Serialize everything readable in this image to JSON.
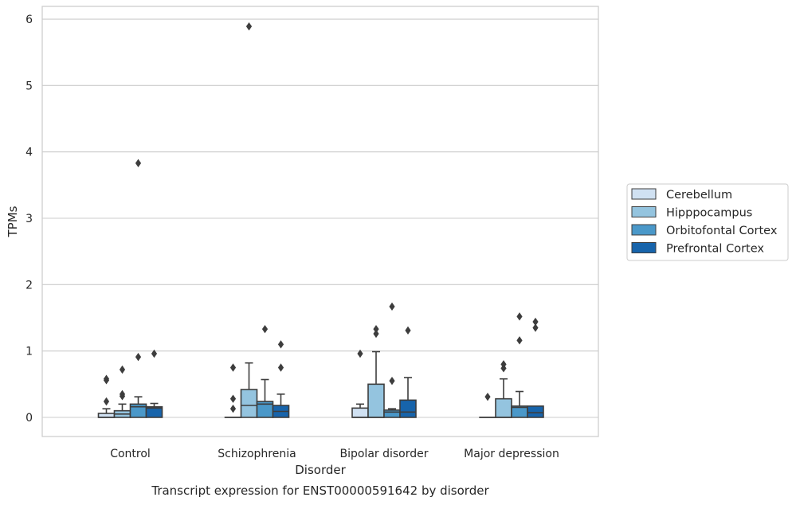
{
  "chart_data": {
    "type": "box",
    "title": "Transcript expression for ENST00000591642 by disorder",
    "xlabel": "Disorder",
    "ylabel": "TPMs",
    "ylim": [
      -0.28,
      6.18
    ],
    "yticks": [
      0,
      1,
      2,
      3,
      4,
      5,
      6
    ],
    "categories": [
      "Control",
      "Schizophrenia",
      "Bipolar disorder",
      "Major depression"
    ],
    "grid": "horizontal",
    "legend_position": "right",
    "series": [
      {
        "name": "Cerebellum",
        "color": "#d0e1f2",
        "boxes": [
          {
            "q1": 0.0,
            "median": 0.0,
            "q3": 0.06,
            "whisker_low": 0.0,
            "whisker_high": 0.13,
            "outliers": [
              0.24,
              0.56,
              0.58
            ]
          },
          {
            "q1": 0.0,
            "median": 0.0,
            "q3": 0.0,
            "whisker_low": 0.0,
            "whisker_high": 0.0,
            "outliers": [
              0.13,
              0.28,
              0.75
            ]
          },
          {
            "q1": 0.0,
            "median": 0.0,
            "q3": 0.14,
            "whisker_low": 0.0,
            "whisker_high": 0.2,
            "outliers": [
              0.96
            ]
          },
          {
            "q1": 0.0,
            "median": 0.0,
            "q3": 0.0,
            "whisker_low": 0.0,
            "whisker_high": 0.0,
            "outliers": [
              0.31
            ]
          }
        ]
      },
      {
        "name": "Hipppocampus",
        "color": "#94c4df",
        "boxes": [
          {
            "q1": 0.0,
            "median": 0.05,
            "q3": 0.1,
            "whisker_low": 0.0,
            "whisker_high": 0.2,
            "outliers": [
              0.32,
              0.35,
              0.72
            ]
          },
          {
            "q1": 0.0,
            "median": 0.18,
            "q3": 0.42,
            "whisker_low": 0.0,
            "whisker_high": 0.82,
            "outliers": [
              5.89
            ]
          },
          {
            "q1": 0.0,
            "median": 0.0,
            "q3": 0.5,
            "whisker_low": 0.0,
            "whisker_high": 0.99,
            "outliers": [
              1.26,
              1.33
            ]
          },
          {
            "q1": 0.0,
            "median": 0.0,
            "q3": 0.28,
            "whisker_low": 0.0,
            "whisker_high": 0.58,
            "outliers": [
              0.74,
              0.8
            ]
          }
        ]
      },
      {
        "name": "Orbitofontal Cortex",
        "color": "#4a98c9",
        "boxes": [
          {
            "q1": 0.0,
            "median": 0.16,
            "q3": 0.2,
            "whisker_low": 0.0,
            "whisker_high": 0.31,
            "outliers": [
              0.91,
              3.83
            ]
          },
          {
            "q1": 0.0,
            "median": 0.2,
            "q3": 0.24,
            "whisker_low": 0.0,
            "whisker_high": 0.57,
            "outliers": [
              1.33
            ]
          },
          {
            "q1": 0.0,
            "median": 0.08,
            "q3": 0.11,
            "whisker_low": 0.0,
            "whisker_high": 0.13,
            "outliers": [
              0.55,
              1.67
            ]
          },
          {
            "q1": 0.0,
            "median": 0.15,
            "q3": 0.17,
            "whisker_low": 0.0,
            "whisker_high": 0.39,
            "outliers": [
              1.16,
              1.52
            ]
          }
        ]
      },
      {
        "name": "Prefrontal Cortex",
        "color": "#1764ab",
        "boxes": [
          {
            "q1": 0.0,
            "median": 0.14,
            "q3": 0.16,
            "whisker_low": 0.0,
            "whisker_high": 0.21,
            "outliers": [
              0.96
            ]
          },
          {
            "q1": 0.0,
            "median": 0.09,
            "q3": 0.18,
            "whisker_low": 0.0,
            "whisker_high": 0.35,
            "outliers": [
              0.75,
              1.1
            ]
          },
          {
            "q1": 0.0,
            "median": 0.08,
            "q3": 0.26,
            "whisker_low": 0.0,
            "whisker_high": 0.6,
            "outliers": [
              1.31
            ]
          },
          {
            "q1": 0.0,
            "median": 0.07,
            "q3": 0.17,
            "whisker_low": 0.0,
            "whisker_high": 0.17,
            "outliers": [
              1.35,
              1.44
            ]
          }
        ]
      }
    ]
  }
}
